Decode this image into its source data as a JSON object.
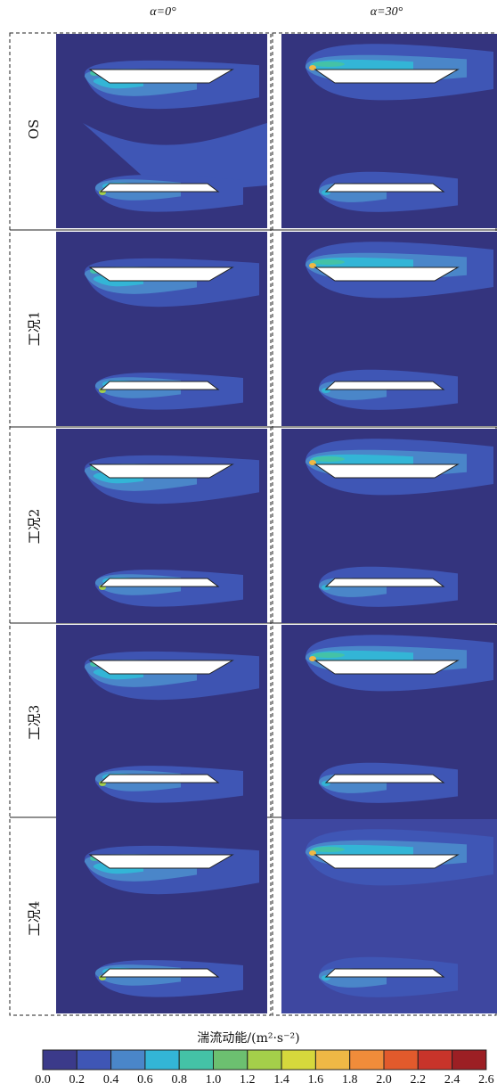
{
  "columns": [
    {
      "label": "α=0°"
    },
    {
      "label": "α=30°"
    }
  ],
  "rows": [
    {
      "label": "OS"
    },
    {
      "label": "工况1"
    },
    {
      "label": "工况2"
    },
    {
      "label": "工况3"
    },
    {
      "label": "工况4"
    }
  ],
  "colorbar": {
    "title": "湍流动能/(m²·s⁻²)",
    "ticks": [
      "0.0",
      "0.2",
      "0.4",
      "0.6",
      "0.8",
      "1.0",
      "1.2",
      "1.4",
      "1.6",
      "1.8",
      "2.0",
      "2.2",
      "2.4",
      "2.6"
    ],
    "colors": [
      "#3b3a8a",
      "#3f56b5",
      "#4a86c9",
      "#33b5d6",
      "#44c2a6",
      "#6cc070",
      "#a4cf4a",
      "#d6d83c",
      "#efb845",
      "#f08c3a",
      "#e25a2c",
      "#c8342a",
      "#9c1f24"
    ]
  },
  "palette": {
    "background": "#34347e",
    "level1": "#3f56b5",
    "level2": "#4a86c9",
    "level3": "#33b5d6",
    "level4": "#44c2a6",
    "level5": "#a4cf4a",
    "level6": "#efb845",
    "hull": "#ffffff"
  }
}
